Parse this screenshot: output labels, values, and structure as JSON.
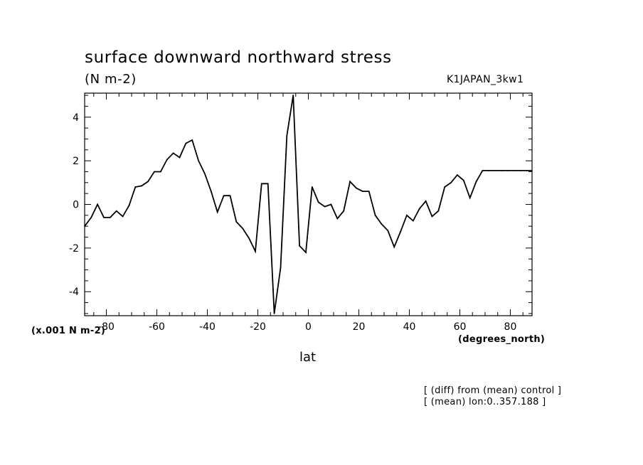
{
  "chart_data": {
    "type": "line",
    "title": "surface downward northward stress",
    "units": "(N m-2)",
    "run_label": "K1JAPAN_3kw1",
    "scale_label": "(x.001 N m-2)",
    "x_units": "(degrees_north)",
    "xlabel": "lat",
    "ylabel": "",
    "notes": [
      "[ (diff) from (mean) control ]",
      "[ (mean) lon:0..357.188 ]"
    ],
    "xlim": [
      -88.6,
      88.6
    ],
    "ylim": [
      -5.1,
      5.1
    ],
    "xticks": [
      -80,
      -60,
      -40,
      -20,
      0,
      20,
      40,
      60,
      80
    ],
    "xtick_labels": [
      "-80",
      "-60",
      "-40",
      "-20",
      "0",
      "20",
      "40",
      "60",
      "80"
    ],
    "yticks": [
      4,
      2,
      0,
      -2,
      -4
    ],
    "ytick_labels": [
      "4",
      "2",
      "0",
      "-2",
      "-4"
    ],
    "grid": false,
    "series": [
      {
        "x": [
          -88.6,
          -86.0,
          -83.5,
          -81.0,
          -78.5,
          -76.0,
          -73.5,
          -71.0,
          -68.5,
          -66.0,
          -63.5,
          -61.0,
          -58.5,
          -56.0,
          -53.5,
          -51.0,
          -48.5,
          -46.0,
          -43.5,
          -41.0,
          -38.5,
          -36.0,
          -33.5,
          -31.0,
          -28.5,
          -26.0,
          -23.5,
          -21.0,
          -18.5,
          -16.0,
          -13.5,
          -11.0,
          -8.5,
          -6.0,
          -3.5,
          -1.0,
          1.5,
          4.0,
          6.5,
          9.0,
          11.5,
          14.0,
          16.5,
          19.0,
          21.5,
          24.0,
          26.5,
          29.0,
          31.5,
          34.0,
          36.5,
          39.0,
          41.5,
          44.0,
          46.5,
          49.0,
          51.5,
          54.0,
          56.5,
          59.0,
          61.5,
          64.0,
          66.5,
          69.0,
          71.5,
          74.0,
          76.5,
          79.0,
          81.5,
          84.0,
          86.5,
          88.6
        ],
        "values": [
          -1.0,
          -0.6,
          0.0,
          -0.6,
          -0.6,
          -0.3,
          -0.55,
          -0.05,
          0.8,
          0.85,
          1.05,
          1.5,
          1.5,
          2.05,
          2.35,
          2.15,
          2.8,
          2.95,
          2.0,
          1.4,
          0.6,
          -0.35,
          0.4,
          0.4,
          -0.8,
          -1.1,
          -1.55,
          -2.15,
          0.95,
          0.95,
          -5.0,
          -2.9,
          3.15,
          5.0,
          -1.9,
          -2.2,
          0.8,
          0.1,
          -0.1,
          0.0,
          -0.65,
          -0.3,
          1.05,
          0.75,
          0.6,
          0.6,
          -0.5,
          -0.9,
          -1.2,
          -1.95,
          -1.25,
          -0.5,
          -0.75,
          -0.2,
          0.15,
          -0.55,
          -0.3,
          0.8,
          1.0,
          1.35,
          1.1,
          0.3,
          1.05,
          1.55,
          1.55,
          1.55,
          1.55,
          1.55,
          1.55,
          1.55,
          1.55,
          1.55
        ]
      }
    ]
  }
}
